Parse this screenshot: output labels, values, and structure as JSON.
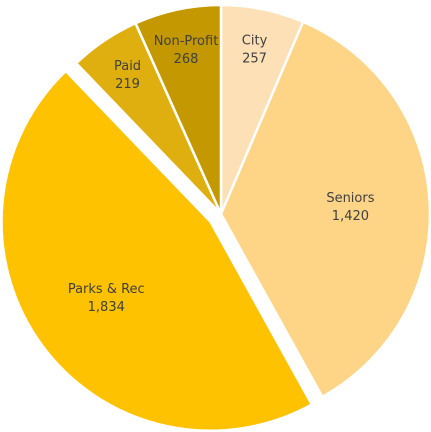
{
  "chart_data": {
    "type": "pie",
    "categories": [
      "City",
      "Seniors",
      "Parks & Rec",
      "Paid",
      "Non-Profit"
    ],
    "values": [
      257,
      1420,
      1834,
      219,
      268
    ],
    "value_labels": [
      "257",
      "1,420",
      "1,834",
      "219",
      "268"
    ],
    "colors": [
      "#fde0b6",
      "#fed587",
      "#fec200",
      "#dfae0f",
      "#c49800"
    ],
    "exploded": "Parks & Rec",
    "start_angle": 0,
    "direction": "clockwise"
  }
}
